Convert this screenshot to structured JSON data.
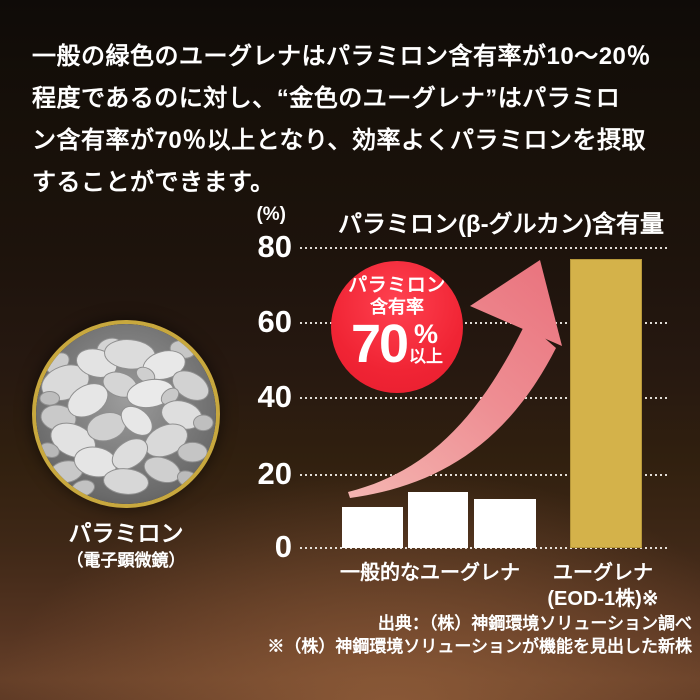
{
  "intro": {
    "lines": [
      "一般の緑色のユーグレナはパラミロン含有率が10〜20％",
      "程度であるのに対し、“金色のユーグレナ”はパラミロ",
      "ン含有率が70％以上となり、効率よくパラミロンを摂取",
      "することができます。"
    ]
  },
  "micrograph": {
    "label": "パラミロン",
    "sublabel": "（電子顕微鏡）"
  },
  "badge": {
    "line1": "パラミロン",
    "line2": "含有率",
    "value": "70",
    "percent": "%",
    "suffix": "以上"
  },
  "chart_data": {
    "type": "bar",
    "title": "パラミロン(β-グルカン)含有量",
    "unit_label": "(%)",
    "ylim": [
      0,
      80
    ],
    "ytick_labels": [
      "80",
      "60",
      "40",
      "20",
      "0"
    ],
    "grid": "dotted-horizontal",
    "values_flat": [
      11,
      15,
      13,
      77
    ],
    "groups": [
      {
        "label": "一般的なユーグレナ",
        "bars": [
          11,
          15,
          13
        ],
        "color": "#ffffff"
      },
      {
        "label_line1": "ユーグレナ",
        "label_line2": "(EOD-1株)※",
        "bars": [
          77
        ],
        "color": "#d4b24a"
      }
    ],
    "annotation": "パラミロン含有率70%以上",
    "legend": "none"
  },
  "footnotes": {
    "line1": "出典：（株）神鋼環境ソリューション調べ",
    "line2": "※（株）神鋼環境ソリューションが機能を見出した新株"
  },
  "colors": {
    "background_top": "#0f0b08",
    "background_bottom": "#653f28",
    "text": "#ffffff",
    "bar_general": "#ffffff",
    "bar_gold": "#d4b24a",
    "badge_red": "#f02434",
    "arrow_pink": "#ec8089",
    "grid_dot": "#faf7f2",
    "micrograph_ring": "#c8a83e"
  }
}
